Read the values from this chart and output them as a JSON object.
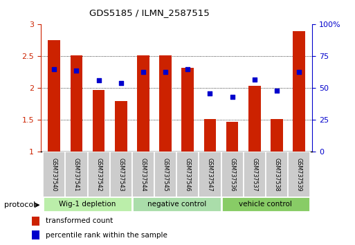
{
  "title": "GDS5185 / ILMN_2587515",
  "samples": [
    "GSM737540",
    "GSM737541",
    "GSM737542",
    "GSM737543",
    "GSM737544",
    "GSM737545",
    "GSM737546",
    "GSM737547",
    "GSM737536",
    "GSM737537",
    "GSM737538",
    "GSM737539"
  ],
  "red_values": [
    2.75,
    2.52,
    1.97,
    1.8,
    2.52,
    2.52,
    2.32,
    1.52,
    1.47,
    2.04,
    1.52,
    2.9
  ],
  "blue_values_pct": [
    65,
    64,
    56,
    54,
    63,
    63,
    65,
    46,
    43,
    57,
    48,
    63
  ],
  "ylim_left": [
    1.0,
    3.0
  ],
  "ylim_right": [
    0,
    100
  ],
  "yticks_left": [
    1.0,
    1.5,
    2.0,
    2.5,
    3.0
  ],
  "ytick_labels_left": [
    "1",
    "1.5",
    "2",
    "2.5",
    "3"
  ],
  "yticks_right": [
    0,
    25,
    50,
    75,
    100
  ],
  "ytick_labels_right": [
    "0",
    "25",
    "50",
    "75",
    "100%"
  ],
  "groups": [
    {
      "label": "Wig-1 depletion",
      "start": 0,
      "end": 3
    },
    {
      "label": "negative control",
      "start": 4,
      "end": 7
    },
    {
      "label": "vehicle control",
      "start": 8,
      "end": 11
    }
  ],
  "group_colors": [
    "#bbeeaa",
    "#aaddaa",
    "#88cc66"
  ],
  "bar_color": "#cc2200",
  "dot_color": "#0000cc",
  "bar_width": 0.55,
  "label_color_left": "#cc2200",
  "label_color_right": "#0000cc",
  "sample_box_color": "#cccccc",
  "legend_red": "transformed count",
  "legend_blue": "percentile rank within the sample",
  "protocol_label": "protocol"
}
